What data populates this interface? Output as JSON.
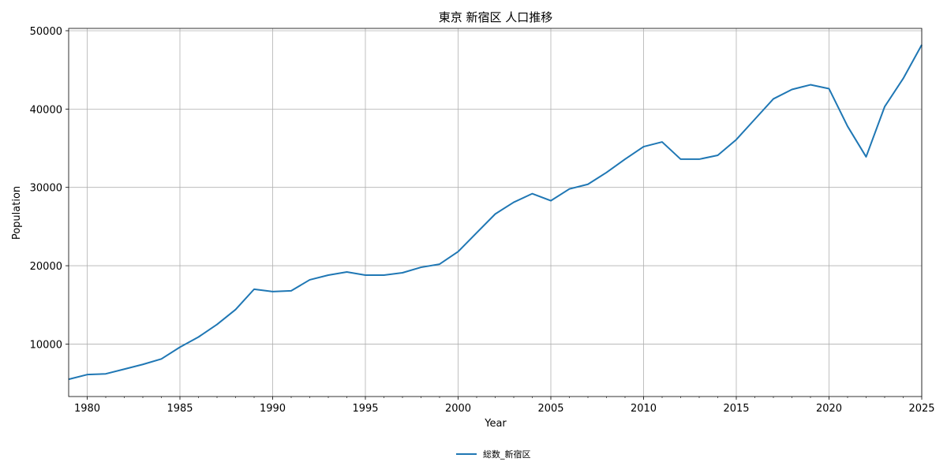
{
  "chart_data": {
    "type": "line",
    "title": "東京 新宿区 人口推移",
    "xlabel": "Year",
    "ylabel": "Population",
    "xlim": [
      1979,
      2025
    ],
    "ylim": [
      3300,
      50300
    ],
    "x_ticks": [
      1980,
      1985,
      1990,
      1995,
      2000,
      2005,
      2010,
      2015,
      2020,
      2025
    ],
    "y_ticks": [
      10000,
      20000,
      30000,
      40000,
      50000
    ],
    "grid": true,
    "legend_position": "bottom-center",
    "colors": {
      "series": "#1f77b4",
      "grid": "#b0b0b0",
      "axis": "#000000"
    },
    "series": [
      {
        "name": "総数_新宿区",
        "x": [
          1979,
          1980,
          1981,
          1982,
          1983,
          1984,
          1985,
          1986,
          1987,
          1988,
          1989,
          1990,
          1991,
          1992,
          1993,
          1994,
          1995,
          1996,
          1997,
          1998,
          1999,
          2000,
          2001,
          2002,
          2003,
          2004,
          2005,
          2006,
          2007,
          2008,
          2009,
          2010,
          2011,
          2012,
          2013,
          2014,
          2015,
          2016,
          2017,
          2018,
          2019,
          2020,
          2021,
          2022,
          2023,
          2024,
          2025
        ],
        "y": [
          5500,
          6100,
          6200,
          6800,
          7400,
          8100,
          9600,
          10900,
          12500,
          14400,
          17000,
          16700,
          16800,
          18200,
          18800,
          19200,
          18800,
          18800,
          19100,
          19800,
          20200,
          21800,
          24200,
          26600,
          28100,
          29200,
          28300,
          29800,
          30400,
          31900,
          33600,
          35200,
          35800,
          33600,
          33600,
          34100,
          36100,
          38700,
          41300,
          42500,
          43100,
          42600,
          37800,
          33900,
          40300,
          43900,
          48200
        ]
      }
    ]
  }
}
